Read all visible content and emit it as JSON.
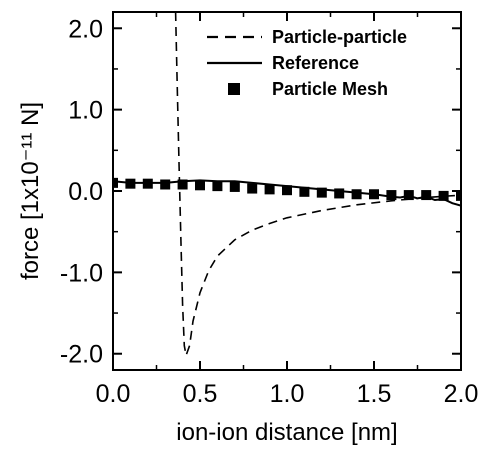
{
  "chart_data": {
    "type": "line",
    "xlabel": "ion-ion distance [nm]",
    "ylabel": "force [1x10⁻¹¹ N]",
    "xlim": [
      0.0,
      2.0
    ],
    "ylim": [
      -2.2,
      2.2
    ],
    "x_ticks": [
      "0.0",
      "0.5",
      "1.0",
      "1.5",
      "2.0"
    ],
    "y_ticks": [
      "-2.0",
      "-1.0",
      "0.0",
      "1.0",
      "2.0"
    ],
    "legend_position": "top-right",
    "grid": false,
    "series": [
      {
        "name": "Particle-particle",
        "style": "dashed",
        "color": "#000000",
        "points": [
          [
            0.36,
            2.2
          ],
          [
            0.37,
            1.2
          ],
          [
            0.38,
            0.3
          ],
          [
            0.39,
            -0.6
          ],
          [
            0.4,
            -1.4
          ],
          [
            0.41,
            -1.9
          ],
          [
            0.42,
            -2.02
          ],
          [
            0.44,
            -1.9
          ],
          [
            0.46,
            -1.6
          ],
          [
            0.5,
            -1.25
          ],
          [
            0.55,
            -0.98
          ],
          [
            0.6,
            -0.8
          ],
          [
            0.7,
            -0.6
          ],
          [
            0.8,
            -0.48
          ],
          [
            0.9,
            -0.4
          ],
          [
            1.0,
            -0.33
          ],
          [
            1.2,
            -0.24
          ],
          [
            1.4,
            -0.17
          ],
          [
            1.6,
            -0.12
          ],
          [
            1.8,
            -0.08
          ],
          [
            2.0,
            -0.05
          ]
        ]
      },
      {
        "name": "Reference",
        "style": "solid",
        "color": "#000000",
        "points": [
          [
            0.0,
            0.12
          ],
          [
            0.1,
            0.1
          ],
          [
            0.2,
            0.1
          ],
          [
            0.3,
            0.1
          ],
          [
            0.4,
            0.12
          ],
          [
            0.5,
            0.13
          ],
          [
            0.6,
            0.12
          ],
          [
            0.7,
            0.12
          ],
          [
            0.8,
            0.1
          ],
          [
            0.9,
            0.08
          ],
          [
            1.0,
            0.06
          ],
          [
            1.1,
            0.04
          ],
          [
            1.2,
            0.02
          ],
          [
            1.3,
            0.0
          ],
          [
            1.4,
            -0.02
          ],
          [
            1.5,
            -0.04
          ],
          [
            1.6,
            -0.07
          ],
          [
            1.65,
            -0.08
          ],
          [
            1.7,
            -0.06
          ],
          [
            1.75,
            -0.09
          ],
          [
            1.8,
            -0.07
          ],
          [
            1.85,
            -0.11
          ],
          [
            1.9,
            -0.1
          ],
          [
            1.95,
            -0.15
          ],
          [
            2.0,
            -0.18
          ]
        ]
      },
      {
        "name": "Particle Mesh",
        "style": "markers",
        "color": "#000000",
        "points": [
          [
            0.0,
            0.1
          ],
          [
            0.1,
            0.09
          ],
          [
            0.2,
            0.09
          ],
          [
            0.3,
            0.08
          ],
          [
            0.4,
            0.08
          ],
          [
            0.5,
            0.07
          ],
          [
            0.6,
            0.06
          ],
          [
            0.7,
            0.05
          ],
          [
            0.8,
            0.03
          ],
          [
            0.9,
            0.02
          ],
          [
            1.0,
            0.01
          ],
          [
            1.1,
            -0.01
          ],
          [
            1.2,
            -0.02
          ],
          [
            1.3,
            -0.03
          ],
          [
            1.4,
            -0.04
          ],
          [
            1.5,
            -0.04
          ],
          [
            1.6,
            -0.05
          ],
          [
            1.7,
            -0.05
          ],
          [
            1.8,
            -0.05
          ],
          [
            1.9,
            -0.06
          ],
          [
            2.0,
            -0.06
          ]
        ]
      }
    ]
  }
}
